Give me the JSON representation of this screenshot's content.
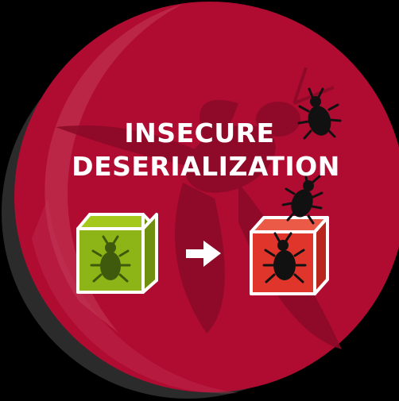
{
  "title": {
    "line1": "INSECURE",
    "line2": "DESERIALIZATION"
  },
  "colors": {
    "background": "#000000",
    "shadow": "#2b2b2b",
    "circle": "#b00c32",
    "circle_highlight": "#c43a58",
    "green_box": "#8db517",
    "red_box": "#e0352b",
    "bug_on_green": "#3f5a0c",
    "bug": "#111111",
    "outline": "#ffffff"
  },
  "icons": [
    "bug-icon",
    "arrow-right-icon",
    "wasp-silhouette-icon"
  ]
}
